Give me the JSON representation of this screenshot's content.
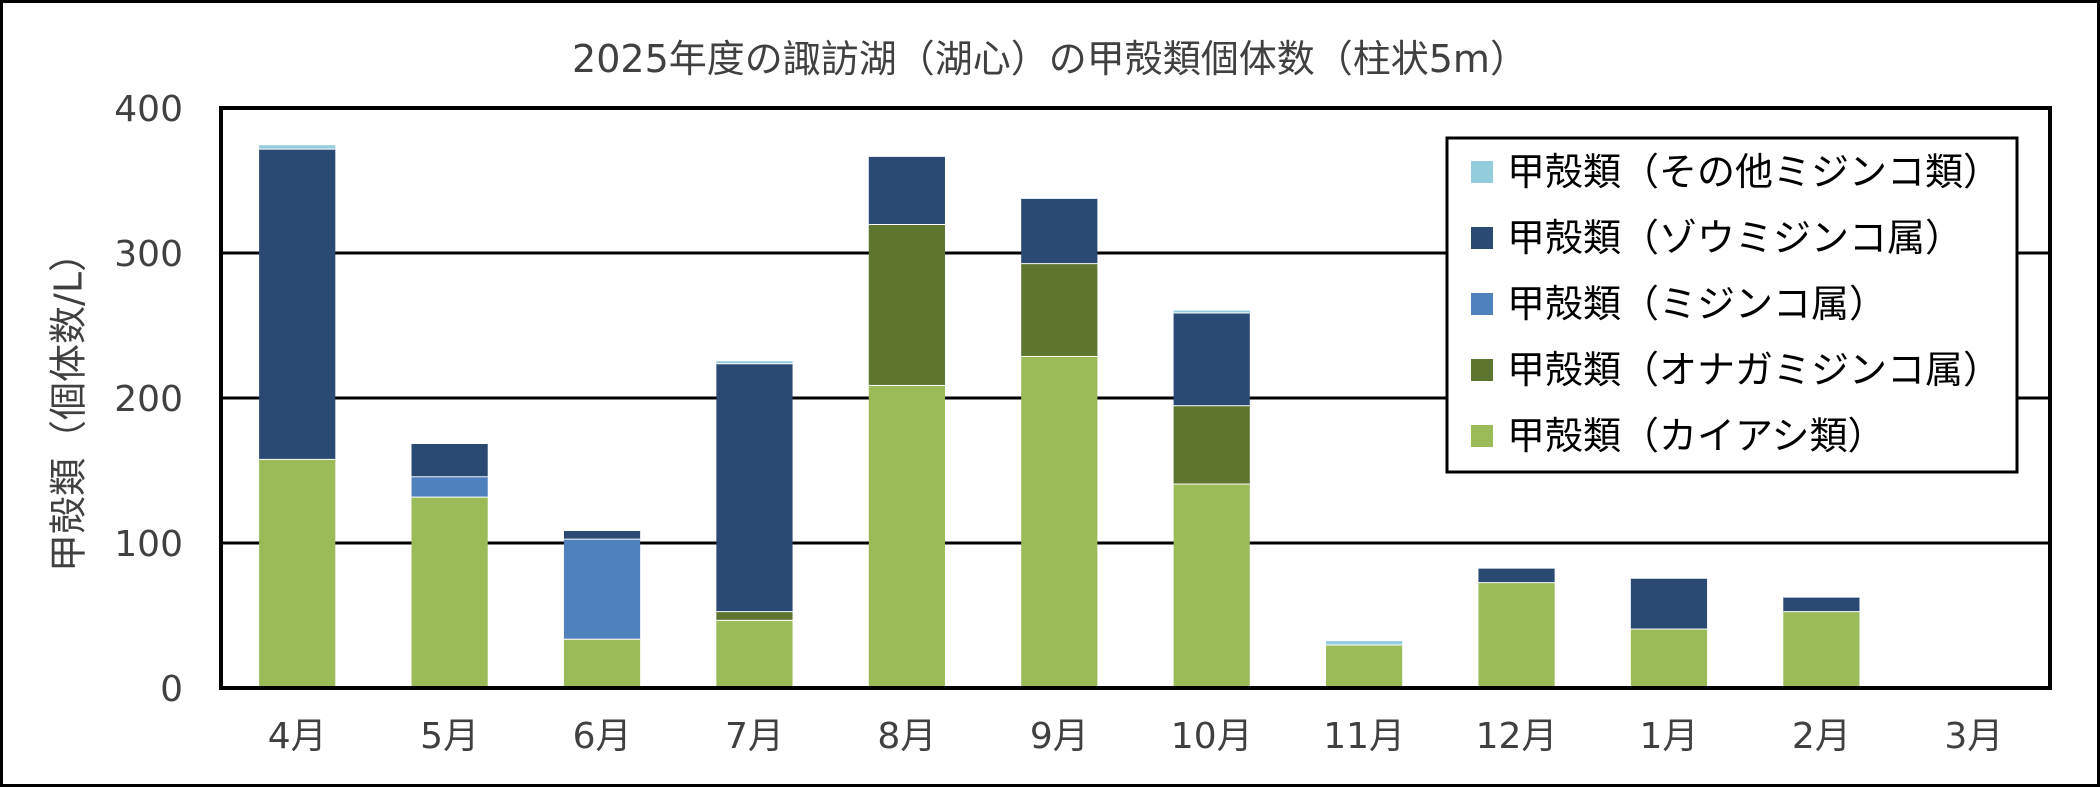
{
  "chart_data": {
    "type": "bar",
    "stacked": true,
    "title": "2025年度の諏訪湖（湖心）の甲殻類個体数（柱状5m）",
    "xlabel": "",
    "ylabel": "甲殻類（個体数/L）",
    "ylim": [
      0,
      400
    ],
    "yticks": [
      0,
      100,
      200,
      300,
      400
    ],
    "grid": true,
    "legend_position": "top-right",
    "categories": [
      "4月",
      "5月",
      "6月",
      "7月",
      "8月",
      "9月",
      "10月",
      "11月",
      "12月",
      "1月",
      "2月",
      "3月"
    ],
    "series": [
      {
        "name": "甲殻類（カイアシ類）",
        "color": "#9BBB59",
        "values": [
          158,
          132,
          34,
          47,
          209,
          229,
          141,
          30,
          73,
          41,
          53,
          0
        ]
      },
      {
        "name": "甲殻類（オナガミジンコ属）",
        "color": "#5E7530",
        "values": [
          0,
          0,
          0,
          6,
          111,
          64,
          54,
          0,
          0,
          0,
          0,
          0
        ]
      },
      {
        "name": "甲殻類（ミジンコ属）",
        "color": "#4F81BD",
        "values": [
          0,
          14,
          69,
          0,
          0,
          0,
          0,
          0,
          0,
          0,
          0,
          0
        ]
      },
      {
        "name": "甲殻類（ゾウミジンコ属）",
        "color": "#2A4A74",
        "values": [
          214,
          23,
          6,
          171,
          47,
          45,
          64,
          0,
          10,
          35,
          10,
          0
        ]
      },
      {
        "name": "甲殻類（その他ミジンコ類）",
        "color": "#93CDDD",
        "values": [
          3,
          0,
          0,
          2,
          0,
          0,
          2,
          3,
          0,
          0,
          0,
          0
        ]
      }
    ],
    "legend_order": [
      "甲殻類（その他ミジンコ類）",
      "甲殻類（ゾウミジンコ属）",
      "甲殻類（ミジンコ属）",
      "甲殻類（オナガミジンコ属）",
      "甲殻類（カイアシ類）"
    ]
  }
}
